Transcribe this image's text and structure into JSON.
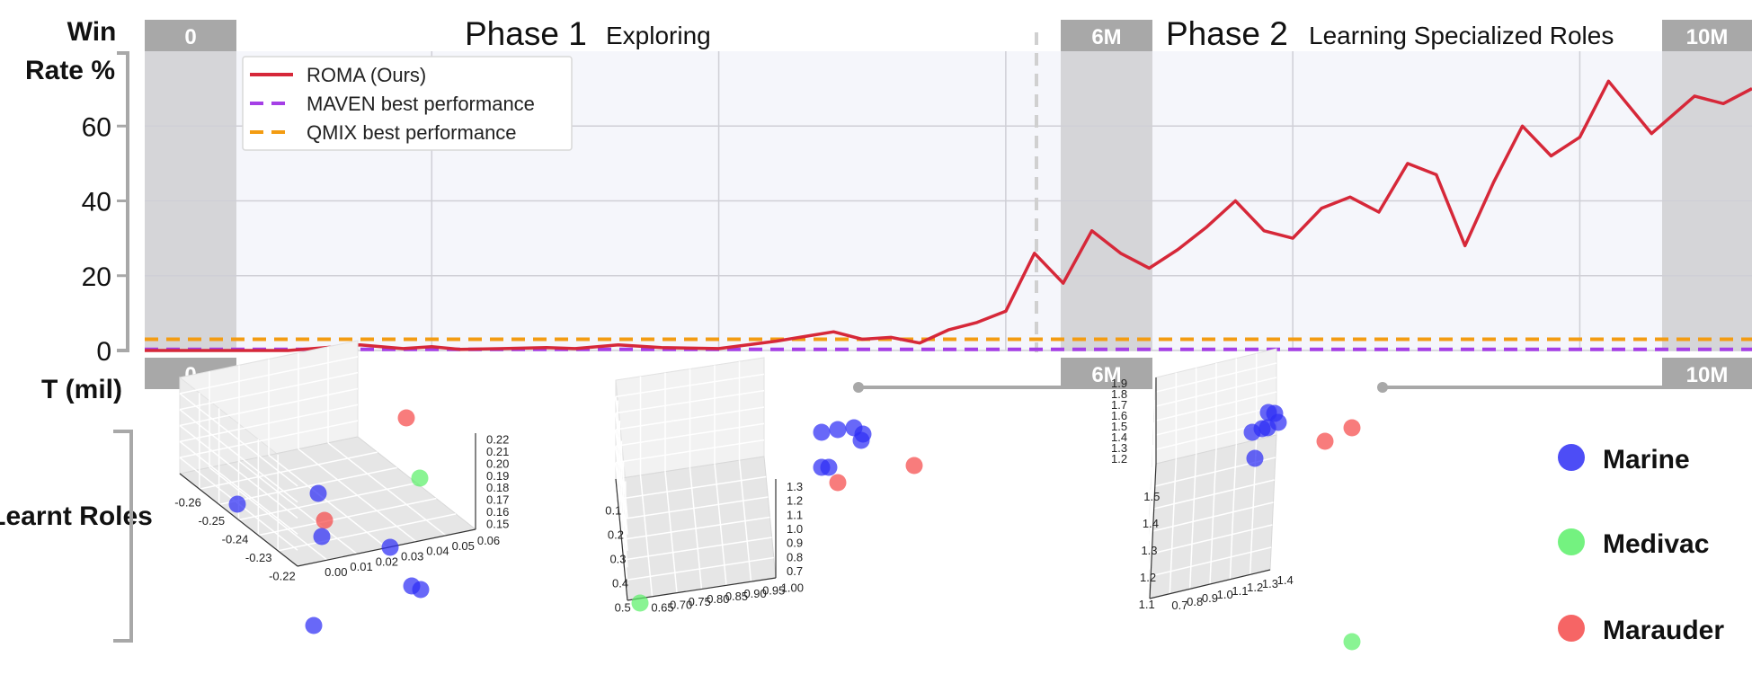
{
  "chart_data": [
    {
      "type": "line",
      "ylabel_line1": "Win",
      "ylabel_line2": "Rate %",
      "xlabel": "T (mil)",
      "xlim": [
        0,
        11.2
      ],
      "ylim": [
        0,
        80
      ],
      "yticks": [
        0,
        20,
        40,
        60
      ],
      "phases": [
        {
          "title": "Phase 1",
          "description": "Exploring"
        },
        {
          "title": "Phase 2",
          "description": "Learning Specialized Roles"
        }
      ],
      "markers": [
        "0",
        "6M",
        "10M"
      ],
      "legend": [
        {
          "label": "ROMA (Ours)",
          "color": "#d62839",
          "style": "solid"
        },
        {
          "label": "MAVEN best performance",
          "color": "#a53fe6",
          "style": "dashed"
        },
        {
          "label": "QMIX best performance",
          "color": "#f39c12",
          "style": "dashed"
        }
      ],
      "series": [
        {
          "name": "ROMA (Ours)",
          "color": "#d62839",
          "x": [
            0,
            1,
            1.5,
            1.8,
            2.0,
            2.2,
            2.5,
            2.8,
            3.0,
            3.3,
            3.6,
            4.0,
            4.4,
            4.8,
            5.0,
            5.2,
            5.4,
            5.6,
            5.8,
            6.0,
            6.2,
            6.4,
            6.6,
            6.8,
            7.0,
            7.2,
            7.4,
            7.6,
            7.8,
            8.0,
            8.2,
            8.4,
            8.6,
            8.8,
            9.0,
            9.2,
            9.4,
            9.6,
            9.8,
            10.0,
            10.2,
            10.5,
            10.8,
            11.0,
            11.2
          ],
          "y": [
            0,
            0,
            1.5,
            0.5,
            1.0,
            0.3,
            0.5,
            0.8,
            0.5,
            1.5,
            0.8,
            0.5,
            2.5,
            5.0,
            3.0,
            3.5,
            2.0,
            5.5,
            7.5,
            10.5,
            26,
            18,
            32,
            26,
            22,
            27,
            33,
            40,
            32,
            30,
            38,
            41,
            37,
            50,
            47,
            28,
            45,
            60,
            52,
            57,
            72,
            58,
            68,
            66,
            70
          ]
        },
        {
          "name": "MAVEN best performance",
          "color": "#a53fe6",
          "constant": 0.3
        },
        {
          "name": "QMIX best performance",
          "color": "#f39c12",
          "constant": 3.0
        }
      ]
    },
    {
      "type": "scatter3d",
      "title": "Learnt Roles",
      "legend": [
        {
          "label": "Marine",
          "color": "#2e2ef5"
        },
        {
          "label": "Medivac",
          "color": "#5cf06a"
        },
        {
          "label": "Marauder",
          "color": "#f54a4a"
        }
      ],
      "panels": [
        {
          "time": "0",
          "x_ticks": [
            "-0.26",
            "-0.25",
            "-0.24",
            "-0.23",
            "-0.22"
          ],
          "y_ticks": [
            "0.00",
            "0.01",
            "0.02",
            "0.03",
            "0.04",
            "0.05",
            "0.06"
          ],
          "z_ticks": [
            "0.15",
            "0.16",
            "0.17",
            "0.18",
            "0.19",
            "0.20",
            "0.21",
            "0.22"
          ]
        },
        {
          "time": "6M",
          "x_ticks": [
            "0.1",
            "0.2",
            "0.3",
            "0.4",
            "0.5"
          ],
          "y_ticks": [
            "0.65",
            "0.70",
            "0.75",
            "0.80",
            "0.85",
            "0.90",
            "0.95",
            "1.00"
          ],
          "z_ticks": [
            "0.7",
            "0.8",
            "0.9",
            "1.0",
            "1.1",
            "1.2",
            "1.3"
          ]
        },
        {
          "time": "10M",
          "x_ticks": [
            "1.5",
            "1.4",
            "1.3",
            "1.2",
            "1.1"
          ],
          "y_ticks": [
            "0.7",
            "0.8",
            "0.9",
            "1.0",
            "1.1",
            "1.2",
            "1.3",
            "1.4"
          ],
          "z_ticks": [
            "1.2",
            "1.3",
            "1.4",
            "1.5",
            "1.6",
            "1.7",
            "1.8",
            "1.9"
          ]
        }
      ]
    }
  ]
}
